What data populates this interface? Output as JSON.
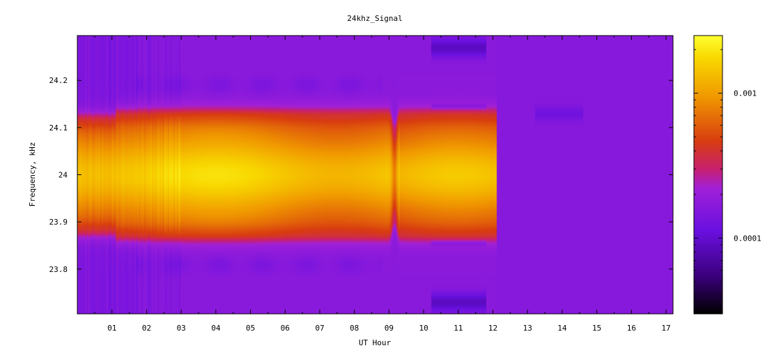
{
  "chart_data": {
    "type": "heatmap",
    "title": "24khz_Signal",
    "xlabel": "UT Hour",
    "ylabel": "Frequency, kHz",
    "xlim": [
      0,
      17.2
    ],
    "ylim": [
      23.705,
      24.295
    ],
    "x_ticks": [
      {
        "value": 1,
        "label": "01"
      },
      {
        "value": 2,
        "label": "02"
      },
      {
        "value": 3,
        "label": "03"
      },
      {
        "value": 4,
        "label": "04"
      },
      {
        "value": 5,
        "label": "05"
      },
      {
        "value": 6,
        "label": "06"
      },
      {
        "value": 7,
        "label": "07"
      },
      {
        "value": 8,
        "label": "08"
      },
      {
        "value": 9,
        "label": "09"
      },
      {
        "value": 10,
        "label": "10"
      },
      {
        "value": 11,
        "label": "11"
      },
      {
        "value": 12,
        "label": "12"
      },
      {
        "value": 13,
        "label": "13"
      },
      {
        "value": 14,
        "label": "14"
      },
      {
        "value": 15,
        "label": "15"
      },
      {
        "value": 16,
        "label": "16"
      },
      {
        "value": 17,
        "label": "17"
      }
    ],
    "y_ticks": [
      {
        "value": 23.8,
        "label": "23.8"
      },
      {
        "value": 23.9,
        "label": "23.9"
      },
      {
        "value": 24.0,
        "label": "24"
      },
      {
        "value": 24.1,
        "label": "24.1"
      },
      {
        "value": 24.2,
        "label": "24.2"
      }
    ],
    "colorbar": {
      "scale": "log",
      "range": [
        3e-05,
        0.0025
      ],
      "ticks": [
        {
          "value": 0.0001,
          "label": "0.0001"
        },
        {
          "value": 0.001,
          "label": "0.001"
        }
      ],
      "colormap": [
        "#000000",
        "#5a00d0",
        "#9a18e8",
        "#c81880",
        "#e83c10",
        "#f09c00",
        "#f8e000",
        "#ffff40"
      ]
    },
    "signal": {
      "center_frequency": 24.0,
      "half_width": 0.13,
      "active_hours": [
        0,
        12.1
      ],
      "dip_hour": 9.15,
      "background_level": 8e-05
    }
  }
}
